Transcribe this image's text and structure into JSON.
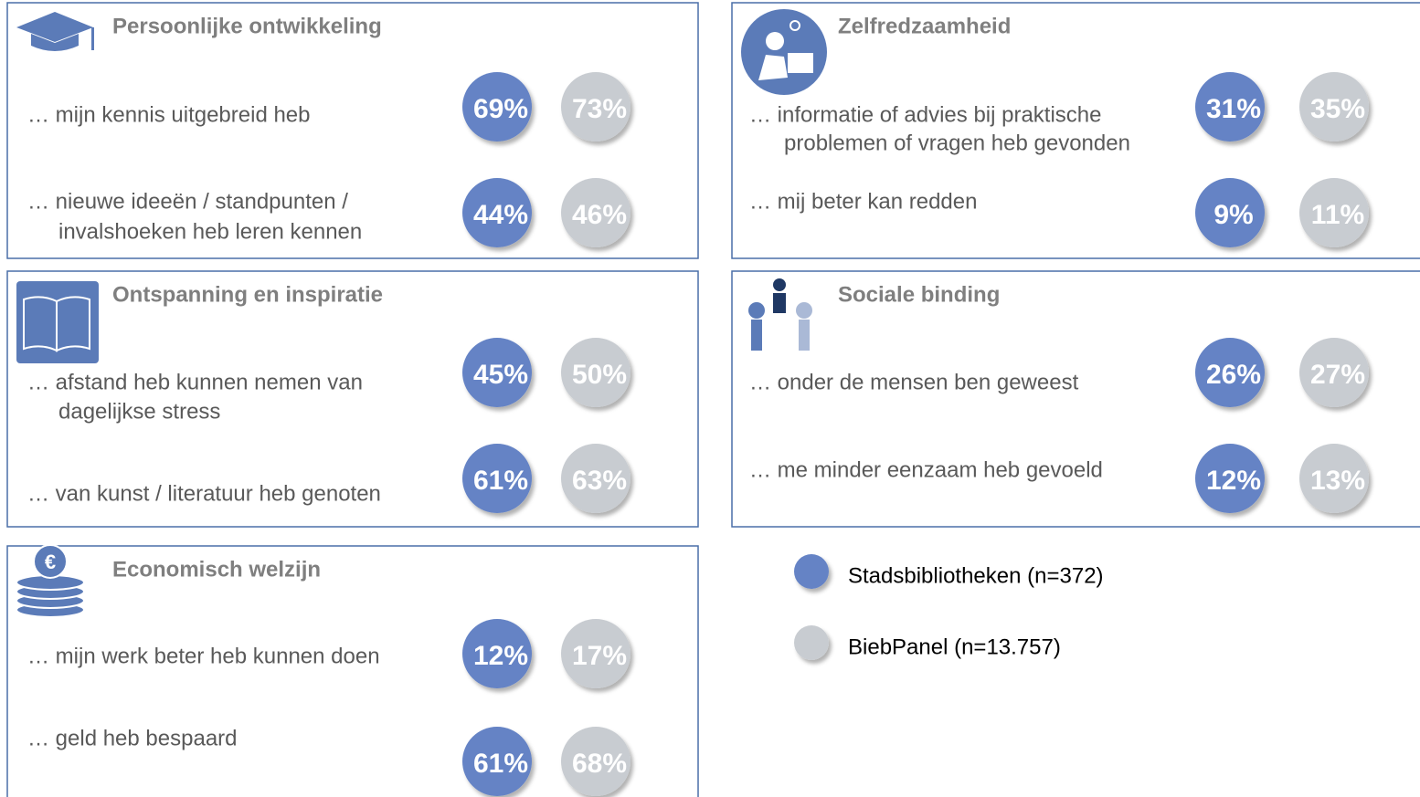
{
  "panels": [
    {
      "title": "Persoonlijke ontwikkeling",
      "items": [
        {
          "lines": [
            "… mijn kennis uitgebreid heb"
          ],
          "stadsbibliotheken": "69%",
          "biebpanel": "73%"
        },
        {
          "lines": [
            "… nieuwe ideeën / standpunten /",
            "invalshoeken heb leren kennen"
          ],
          "stadsbibliotheken": "44%",
          "biebpanel": "46%"
        }
      ]
    },
    {
      "title": "Zelfredzaamheid",
      "items": [
        {
          "lines": [
            "… informatie of advies bij praktische",
            "problemen of vragen heb gevonden"
          ],
          "stadsbibliotheken": "31%",
          "biebpanel": "35%"
        },
        {
          "lines": [
            "… mij beter kan redden"
          ],
          "stadsbibliotheken": "9%",
          "biebpanel": "11%"
        }
      ]
    },
    {
      "title": "Ontspanning en inspiratie",
      "items": [
        {
          "lines": [
            "… afstand heb kunnen nemen van",
            "dagelijkse stress"
          ],
          "stadsbibliotheken": "45%",
          "biebpanel": "50%"
        },
        {
          "lines": [
            "… van kunst / literatuur heb genoten"
          ],
          "stadsbibliotheken": "61%",
          "biebpanel": "63%"
        }
      ]
    },
    {
      "title": "Sociale binding",
      "items": [
        {
          "lines": [
            "… onder de mensen ben geweest"
          ],
          "stadsbibliotheken": "26%",
          "biebpanel": "27%"
        },
        {
          "lines": [
            "… me minder eenzaam heb gevoeld"
          ],
          "stadsbibliotheken": "12%",
          "biebpanel": "13%"
        }
      ]
    },
    {
      "title": "Economisch welzijn",
      "items": [
        {
          "lines": [
            "… mijn werk beter heb kunnen doen"
          ],
          "stadsbibliotheken": "12%",
          "biebpanel": "17%"
        },
        {
          "lines": [
            "… geld heb bespaard"
          ],
          "stadsbibliotheken": "61%",
          "biebpanel": "68%"
        }
      ]
    }
  ],
  "legend": [
    "Stadsbibliotheken (n=372)",
    "BiebPanel (n=13.757)"
  ]
}
